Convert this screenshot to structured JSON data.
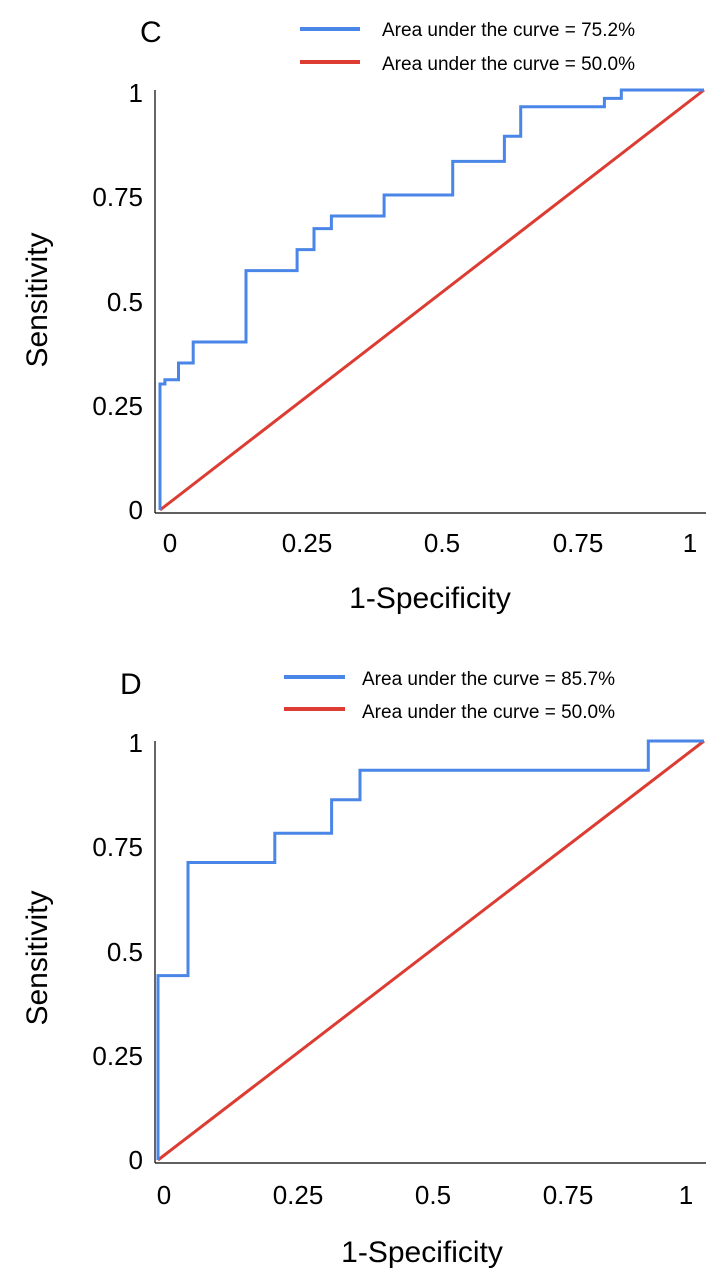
{
  "chart_data": [
    {
      "type": "line",
      "panel_label": "C",
      "xlabel": "1-Specificity",
      "ylabel": "Sensitivity",
      "xlim": [
        0,
        1
      ],
      "ylim": [
        0,
        1
      ],
      "x_ticks": [
        "0",
        "0.25",
        "0.5",
        "0.75",
        "1"
      ],
      "y_ticks": [
        "0",
        "0.25",
        "0.5",
        "0.75",
        "1"
      ],
      "grid": false,
      "legend_position": "top-right",
      "series": [
        {
          "name": "Area under the curve = 75.2%",
          "color": "#4a86e8",
          "x": [
            0,
            0,
            0.009,
            0.009,
            0.034,
            0.034,
            0.061,
            0.061,
            0.158,
            0.158,
            0.252,
            0.252,
            0.283,
            0.283,
            0.315,
            0.315,
            0.412,
            0.412,
            0.538,
            0.538,
            0.633,
            0.633,
            0.663,
            0.663,
            0.817,
            0.817,
            0.848,
            0.848,
            1
          ],
          "y": [
            0,
            0.3,
            0.3,
            0.31,
            0.31,
            0.35,
            0.35,
            0.4,
            0.4,
            0.57,
            0.57,
            0.62,
            0.62,
            0.67,
            0.67,
            0.7,
            0.7,
            0.75,
            0.75,
            0.83,
            0.83,
            0.89,
            0.89,
            0.96,
            0.96,
            0.98,
            0.98,
            1,
            1
          ]
        },
        {
          "name": "Area under the curve = 50.0%",
          "color": "#dc3c32",
          "x": [
            0,
            1
          ],
          "y": [
            0,
            1
          ]
        }
      ]
    },
    {
      "type": "line",
      "panel_label": "D",
      "xlabel": "1-Specificity",
      "ylabel": "Sensitivity",
      "xlim": [
        0,
        1
      ],
      "ylim": [
        0,
        1
      ],
      "x_ticks": [
        "0",
        "0.25",
        "0.5",
        "0.75",
        "1"
      ],
      "y_ticks": [
        "0",
        "0.25",
        "0.5",
        "0.75",
        "1"
      ],
      "grid": false,
      "legend_position": "top-right",
      "series": [
        {
          "name": "Area under the curve = 85.7%",
          "color": "#4a86e8",
          "x": [
            0,
            0,
            0.055,
            0.055,
            0.214,
            0.214,
            0.318,
            0.318,
            0.37,
            0.37,
            0.898,
            0.898,
            1
          ],
          "y": [
            0,
            0.44,
            0.44,
            0.71,
            0.71,
            0.78,
            0.78,
            0.86,
            0.86,
            0.93,
            0.93,
            1,
            1
          ]
        },
        {
          "name": "Area under the curve = 50.0%",
          "color": "#dc3c32",
          "x": [
            0,
            1
          ],
          "y": [
            0,
            1
          ]
        }
      ]
    }
  ]
}
